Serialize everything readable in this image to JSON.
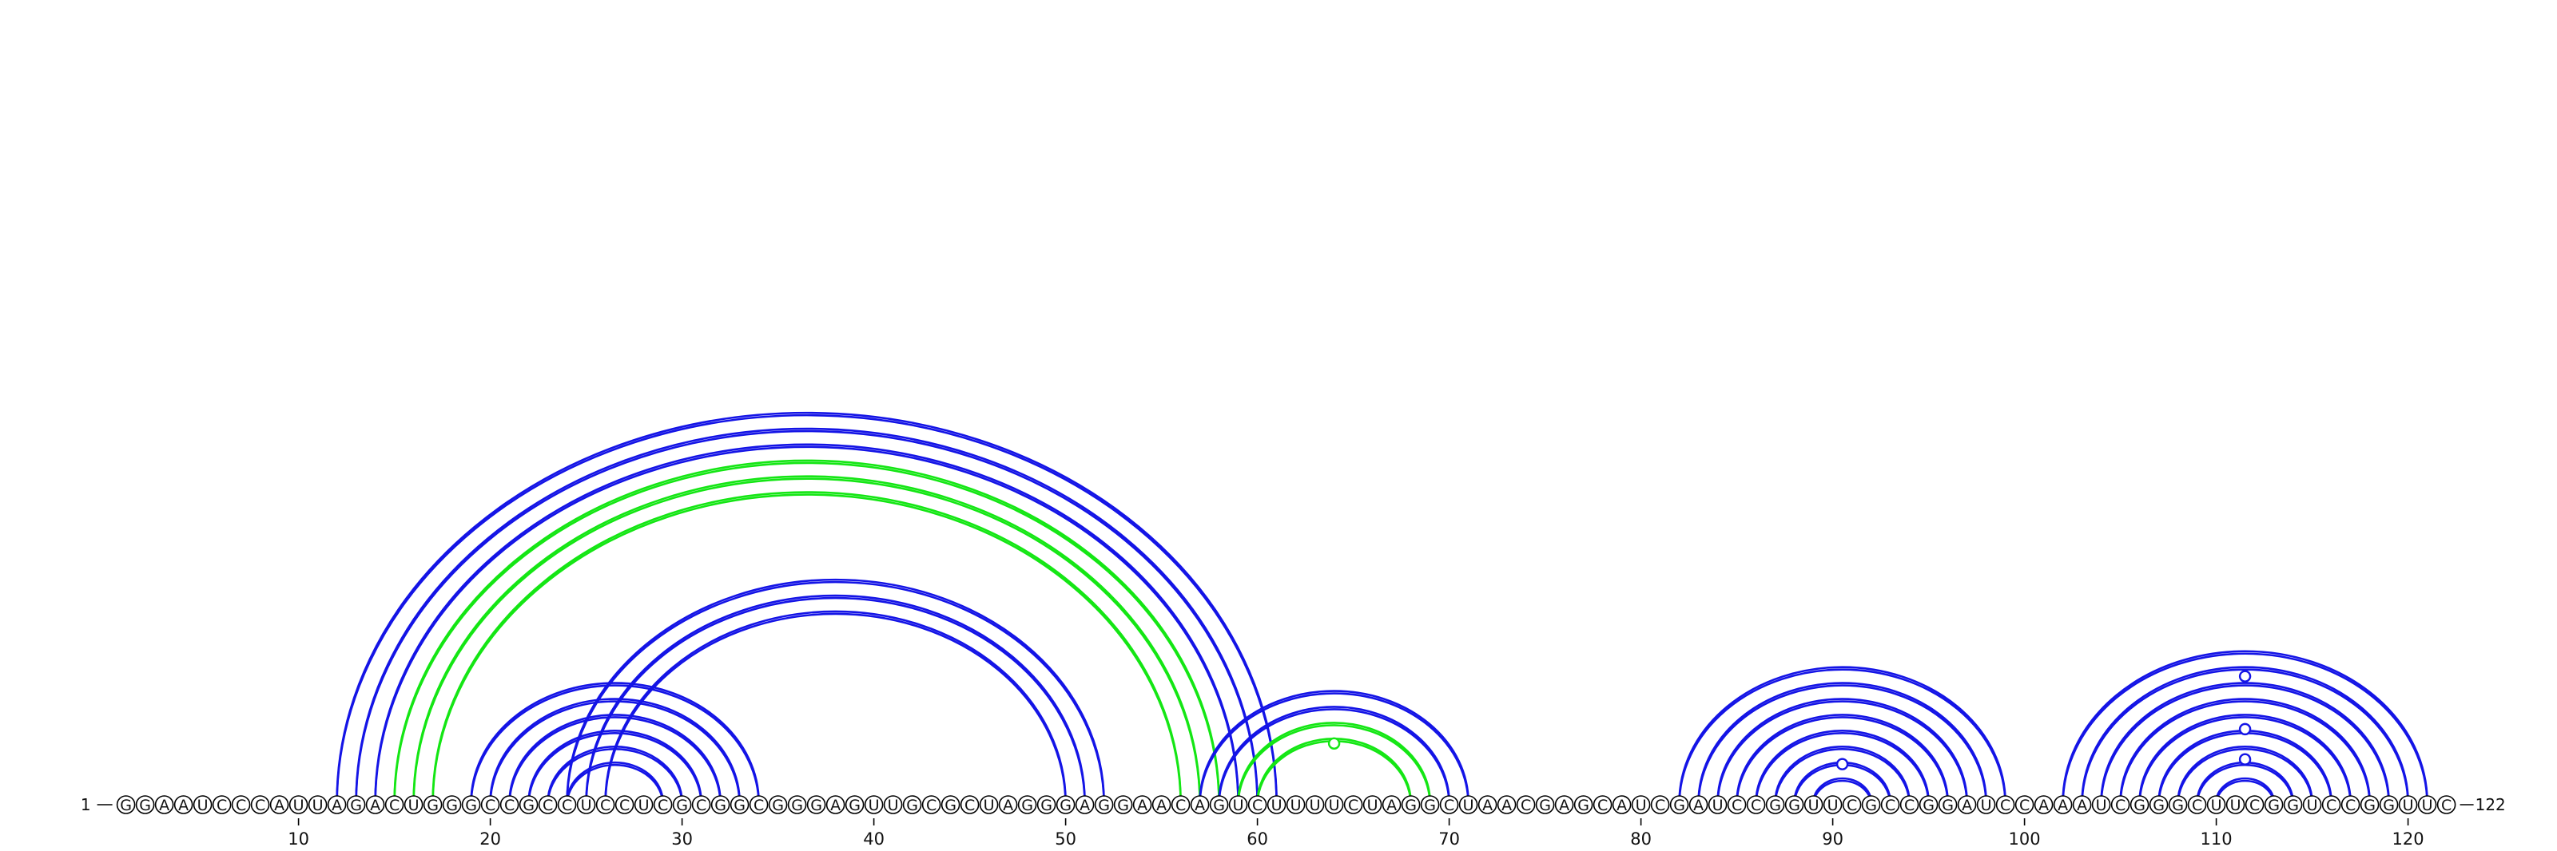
{
  "start_label": "1",
  "end_label": "122",
  "sequence": "GGAAUCCCAUUAGACUGGGCCGCCUCCUCGCGGCGGGAGUUGCGCUAGGGAGGAACAGUCUUUUCUAGGCUAACGAGCAUCGAUCCGGUUCGCCGGAUCCAAAUCGGGCUUCGGUCCGGUUC",
  "colors": {
    "blue": "#1414e6",
    "green": "#14e614",
    "text": "#111111"
  },
  "ticks": [
    {
      "pos": 10,
      "label": "10"
    },
    {
      "pos": 20,
      "label": "20"
    },
    {
      "pos": 30,
      "label": "30"
    },
    {
      "pos": 40,
      "label": "40"
    },
    {
      "pos": 50,
      "label": "50"
    },
    {
      "pos": 60,
      "label": "60"
    },
    {
      "pos": 70,
      "label": "70"
    },
    {
      "pos": 80,
      "label": "80"
    },
    {
      "pos": 90,
      "label": "90"
    },
    {
      "pos": 100,
      "label": "100"
    },
    {
      "pos": 110,
      "label": "110"
    },
    {
      "pos": 120,
      "label": "120"
    }
  ],
  "arcs": [
    {
      "i": 12,
      "j": 61,
      "color": "blue"
    },
    {
      "i": 13,
      "j": 60,
      "color": "blue"
    },
    {
      "i": 14,
      "j": 59,
      "color": "blue"
    },
    {
      "i": 15,
      "j": 58,
      "color": "green"
    },
    {
      "i": 16,
      "j": 57,
      "color": "green"
    },
    {
      "i": 17,
      "j": 56,
      "color": "green"
    },
    {
      "i": 19,
      "j": 34,
      "color": "blue"
    },
    {
      "i": 20,
      "j": 33,
      "color": "blue"
    },
    {
      "i": 21,
      "j": 32,
      "color": "blue"
    },
    {
      "i": 22,
      "j": 31,
      "color": "blue"
    },
    {
      "i": 23,
      "j": 30,
      "color": "blue"
    },
    {
      "i": 24,
      "j": 29,
      "color": "blue"
    },
    {
      "i": 24,
      "j": 52,
      "color": "blue"
    },
    {
      "i": 25,
      "j": 51,
      "color": "blue"
    },
    {
      "i": 26,
      "j": 50,
      "color": "blue"
    },
    {
      "i": 57,
      "j": 71,
      "color": "blue"
    },
    {
      "i": 58,
      "j": 70,
      "color": "blue"
    },
    {
      "i": 59,
      "j": 69,
      "color": "green"
    },
    {
      "i": 60,
      "j": 68,
      "color": "green"
    },
    {
      "i": 82,
      "j": 99,
      "color": "blue"
    },
    {
      "i": 83,
      "j": 98,
      "color": "blue"
    },
    {
      "i": 84,
      "j": 97,
      "color": "blue"
    },
    {
      "i": 85,
      "j": 96,
      "color": "blue"
    },
    {
      "i": 86,
      "j": 95,
      "color": "blue"
    },
    {
      "i": 87,
      "j": 94,
      "color": "blue"
    },
    {
      "i": 88,
      "j": 93,
      "color": "blue"
    },
    {
      "i": 89,
      "j": 92,
      "color": "blue"
    },
    {
      "i": 102,
      "j": 121,
      "color": "blue"
    },
    {
      "i": 103,
      "j": 120,
      "color": "blue"
    },
    {
      "i": 104,
      "j": 119,
      "color": "blue"
    },
    {
      "i": 105,
      "j": 118,
      "color": "blue"
    },
    {
      "i": 106,
      "j": 117,
      "color": "blue"
    },
    {
      "i": 107,
      "j": 116,
      "color": "blue"
    },
    {
      "i": 108,
      "j": 115,
      "color": "blue"
    },
    {
      "i": 109,
      "j": 114,
      "color": "blue"
    },
    {
      "i": 110,
      "j": 113,
      "color": "blue"
    }
  ],
  "markers": [
    {
      "pos": 64,
      "level": 0.55,
      "color": "green"
    },
    {
      "pos": 90.5,
      "level": 0.3,
      "color": "blue"
    },
    {
      "pos": 111.5,
      "level": 0.85,
      "color": "blue"
    },
    {
      "pos": 111.5,
      "level": 0.5,
      "color": "blue"
    },
    {
      "pos": 111.5,
      "level": 0.3,
      "color": "blue"
    }
  ]
}
